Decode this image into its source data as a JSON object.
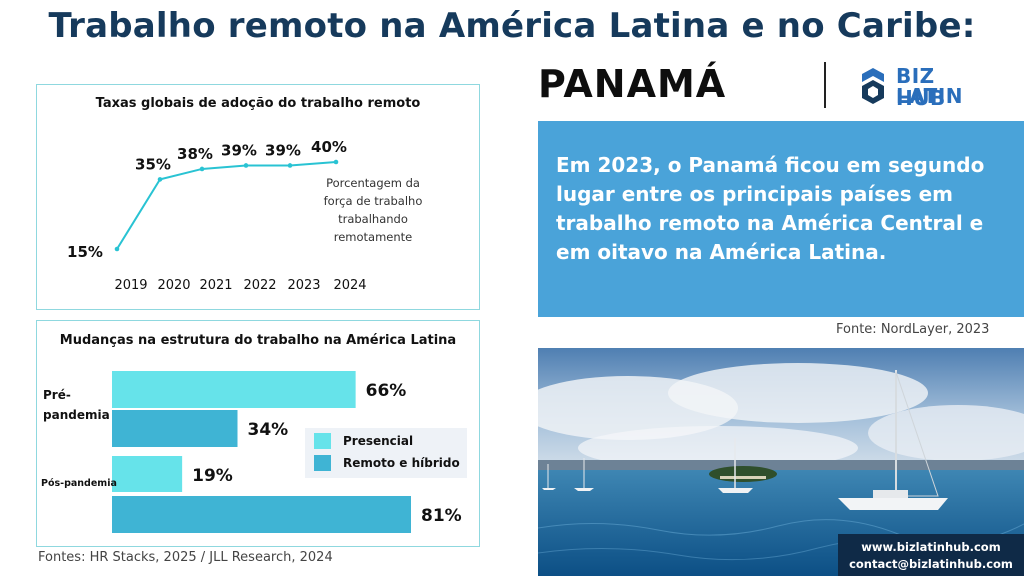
{
  "header": {
    "title": "Trabalho remoto na América Latina e no Caribe:",
    "country": "PANAMÁ",
    "logo_line1": "BIZ LATIN",
    "logo_line2": "HUB"
  },
  "info": {
    "text": "Em 2023, o Panamá ficou em segundo lugar entre os principais países em trabalho remoto na América Central e em oitavo na América Latina.",
    "source": "Fonte: NordLayer, 2023"
  },
  "contact": {
    "website": "www.bizlatinhub.com",
    "email": "contact@bizlatinhub.com"
  },
  "footer": {
    "sources": "Fontes: HR Stacks, 2025 / JLL Research, 2024"
  },
  "colors": {
    "title": "#163a5c",
    "teal_line": "#29c3d3",
    "presencial": "#66e3ea",
    "remoto": "#3fb4d4",
    "info_box": "#4aa3d9",
    "navy": "#0f2a47"
  },
  "chart_data": [
    {
      "type": "line",
      "title": "Taxas globais de adoção do trabalho remoto",
      "x": [
        "2019",
        "2020",
        "2021",
        "2022",
        "2023",
        "2024"
      ],
      "values": [
        15,
        35,
        38,
        39,
        39,
        40
      ],
      "labels": [
        "15%",
        "35%",
        "38%",
        "39%",
        "39%",
        "40%"
      ],
      "ylim": [
        15,
        40
      ],
      "annotation": "Porcentagem da força de trabalho trabalhando remotamente",
      "annotation_lines": [
        "Porcentagem da",
        "força de trabalho",
        "trabalhando",
        "remotamente"
      ]
    },
    {
      "type": "bar",
      "orientation": "horizontal",
      "title": "Mudanças na estrutura do trabalho na América Latina",
      "categories": [
        "Pré-pandemia",
        "Pós-pandemia"
      ],
      "category_lines": [
        [
          "Pré-",
          "pandemia"
        ],
        [
          "Pós-pandemia"
        ]
      ],
      "series": [
        {
          "name": "Presencial",
          "values": [
            66,
            19
          ]
        },
        {
          "name": "Remoto e híbrido",
          "values": [
            34,
            81
          ]
        }
      ],
      "labels": [
        [
          "66%",
          "34%"
        ],
        [
          "19%",
          "81%"
        ]
      ],
      "xlim": [
        0,
        81
      ]
    }
  ]
}
